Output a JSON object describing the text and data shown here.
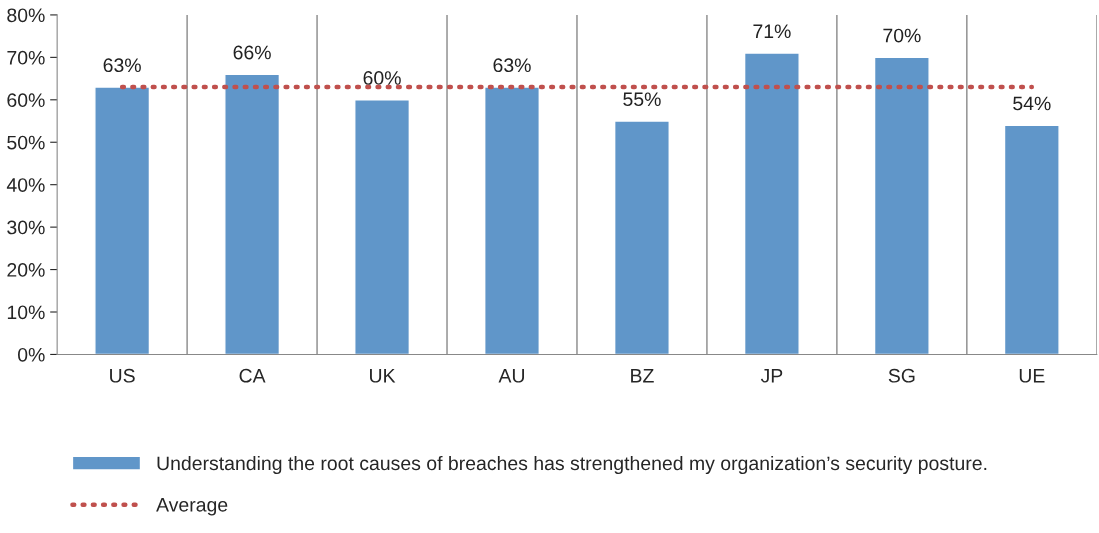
{
  "chart_data": {
    "type": "bar",
    "categories": [
      "US",
      "CA",
      "UK",
      "AU",
      "BZ",
      "JP",
      "SG",
      "UE"
    ],
    "series": [
      {
        "name": "Understanding the root causes of breaches has strengthened my organization’s security posture.",
        "color": "#6096c9",
        "values": [
          63,
          66,
          60,
          63,
          55,
          71,
          70,
          54
        ],
        "value_labels": [
          "63%",
          "66%",
          "60%",
          "63%",
          "55%",
          "71%",
          "70%",
          "54%"
        ]
      },
      {
        "name": "Average",
        "type": "line",
        "color": "#c0504d",
        "line_style": "dotted",
        "values": [
          63,
          63,
          63,
          63,
          63,
          63,
          63,
          63
        ]
      }
    ],
    "ylim": [
      0,
      80
    ],
    "yticks": [
      {
        "value": 0,
        "label": "0%"
      },
      {
        "value": 10,
        "label": "10%"
      },
      {
        "value": 20,
        "label": "20%"
      },
      {
        "value": 30,
        "label": "30%"
      },
      {
        "value": 40,
        "label": "40%"
      },
      {
        "value": 50,
        "label": "50%"
      },
      {
        "value": 60,
        "label": "60%"
      },
      {
        "value": 70,
        "label": "70%"
      },
      {
        "value": 80,
        "label": "80%"
      }
    ],
    "grid": "x",
    "legend": "bottom"
  }
}
